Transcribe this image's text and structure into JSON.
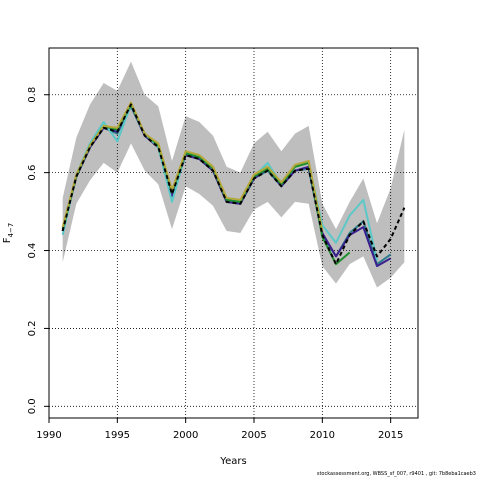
{
  "chart_data": {
    "type": "line",
    "xlabel": "Years",
    "ylabel_main": "F",
    "ylabel_sub": "4−7",
    "xlim": [
      1990,
      2017
    ],
    "ylim": [
      -0.03,
      0.92
    ],
    "xticks": [
      "1990",
      "1995",
      "2000",
      "2005",
      "2010",
      "2015"
    ],
    "yticks": [
      "0.0",
      "0.2",
      "0.4",
      "0.6",
      "0.8"
    ],
    "grid": "dotted",
    "band": {
      "color": "#bebebe",
      "x": [
        1991,
        1992,
        1993,
        1994,
        1995,
        1996,
        1997,
        1998,
        1999,
        2000,
        2001,
        2002,
        2003,
        2004,
        2005,
        2006,
        2007,
        2008,
        2009,
        2010,
        2011,
        2012,
        2013,
        2014,
        2015,
        2016
      ],
      "lower": [
        0.37,
        0.52,
        0.58,
        0.625,
        0.6,
        0.675,
        0.605,
        0.57,
        0.455,
        0.565,
        0.545,
        0.515,
        0.45,
        0.445,
        0.505,
        0.525,
        0.485,
        0.525,
        0.52,
        0.36,
        0.315,
        0.365,
        0.385,
        0.305,
        0.33,
        0.37
      ],
      "upper": [
        0.535,
        0.69,
        0.775,
        0.83,
        0.81,
        0.885,
        0.8,
        0.77,
        0.63,
        0.745,
        0.73,
        0.695,
        0.615,
        0.6,
        0.675,
        0.705,
        0.655,
        0.7,
        0.72,
        0.52,
        0.455,
        0.525,
        0.585,
        0.47,
        0.56,
        0.71
      ]
    },
    "series": [
      {
        "color": "#2e7d8c",
        "dash": "",
        "x": [
          1991,
          1992,
          1993,
          1994,
          1995,
          1996,
          1997,
          1998,
          1999,
          2000,
          2001,
          2002,
          2003,
          2004,
          2005,
          2006,
          2007,
          2008,
          2009,
          2010,
          2011,
          2012,
          2013,
          2014,
          2015
        ],
        "values": [
          0.45,
          0.59,
          0.665,
          0.715,
          0.7,
          0.77,
          0.695,
          0.665,
          0.54,
          0.645,
          0.635,
          0.605,
          0.525,
          0.52,
          0.585,
          0.605,
          0.565,
          0.605,
          0.61,
          0.44,
          0.385,
          0.445,
          0.475,
          0.365,
          0.39
        ]
      },
      {
        "color": "#3a1f8f",
        "dash": "",
        "x": [
          1991,
          1992,
          1993,
          1994,
          1995,
          1996,
          1997,
          1998,
          1999,
          2000,
          2001,
          2002,
          2003,
          2004,
          2005,
          2006,
          2007,
          2008,
          2009,
          2010,
          2011,
          2012,
          2013,
          2014,
          2015
        ],
        "values": [
          0.45,
          0.59,
          0.665,
          0.715,
          0.705,
          0.775,
          0.695,
          0.665,
          0.54,
          0.645,
          0.635,
          0.605,
          0.525,
          0.52,
          0.585,
          0.61,
          0.565,
          0.605,
          0.615,
          0.445,
          0.385,
          0.44,
          0.46,
          0.36,
          0.38
        ]
      },
      {
        "color": "#5bc8c8",
        "dash": "",
        "x": [
          1991,
          1992,
          1993,
          1994,
          1995,
          1996,
          1997,
          1998,
          1999,
          2000,
          2001,
          2002,
          2003,
          2004,
          2005,
          2006,
          2007,
          2008,
          2009,
          2010,
          2011,
          2012,
          2013,
          2014
        ],
        "values": [
          0.44,
          0.595,
          0.675,
          0.73,
          0.68,
          0.775,
          0.7,
          0.665,
          0.525,
          0.65,
          0.64,
          0.61,
          0.53,
          0.525,
          0.59,
          0.625,
          0.57,
          0.615,
          0.625,
          0.465,
          0.42,
          0.49,
          0.53,
          0.375
        ]
      },
      {
        "color": "#1e8f2e",
        "dash": "",
        "x": [
          1991,
          1992,
          1993,
          1994,
          1995,
          1996,
          1997,
          1998,
          1999,
          2000,
          2001,
          2002,
          2003,
          2004,
          2005,
          2006,
          2007,
          2008,
          2009,
          2010,
          2011,
          2012
        ],
        "values": [
          0.455,
          0.59,
          0.67,
          0.72,
          0.71,
          0.775,
          0.7,
          0.67,
          0.55,
          0.65,
          0.64,
          0.61,
          0.53,
          0.525,
          0.59,
          0.61,
          0.57,
          0.615,
          0.625,
          0.435,
          0.365,
          0.395
        ]
      },
      {
        "color": "#b5a83a",
        "dash": "",
        "x": [
          1991,
          1992,
          1993,
          1994,
          1995,
          1996,
          1997,
          1998,
          1999,
          2000,
          2001,
          2002,
          2003,
          2004,
          2005,
          2006,
          2007,
          2008,
          2009,
          2010
        ],
        "values": [
          0.46,
          0.595,
          0.67,
          0.72,
          0.715,
          0.78,
          0.7,
          0.675,
          0.555,
          0.655,
          0.645,
          0.615,
          0.535,
          0.53,
          0.595,
          0.615,
          0.575,
          0.62,
          0.63,
          0.45
        ]
      },
      {
        "color": "#000000",
        "dash": "4,3",
        "x": [
          1991,
          1992,
          1993,
          1994,
          1995,
          1996,
          1997,
          1998,
          1999,
          2000,
          2001,
          2002,
          2003,
          2004,
          2005,
          2006,
          2007,
          2008,
          2009,
          2010,
          2011,
          2012,
          2013,
          2014,
          2015,
          2016
        ],
        "values": [
          0.45,
          0.59,
          0.665,
          0.715,
          0.705,
          0.775,
          0.695,
          0.665,
          0.545,
          0.645,
          0.635,
          0.605,
          0.525,
          0.52,
          0.585,
          0.605,
          0.565,
          0.605,
          0.61,
          0.44,
          0.365,
          0.44,
          0.475,
          0.385,
          0.43,
          0.51
        ]
      }
    ]
  },
  "footer": {
    "text": "stockassessment.org, WBSS_sf_007, r9401 , git: 7b8eba1caeb3"
  }
}
